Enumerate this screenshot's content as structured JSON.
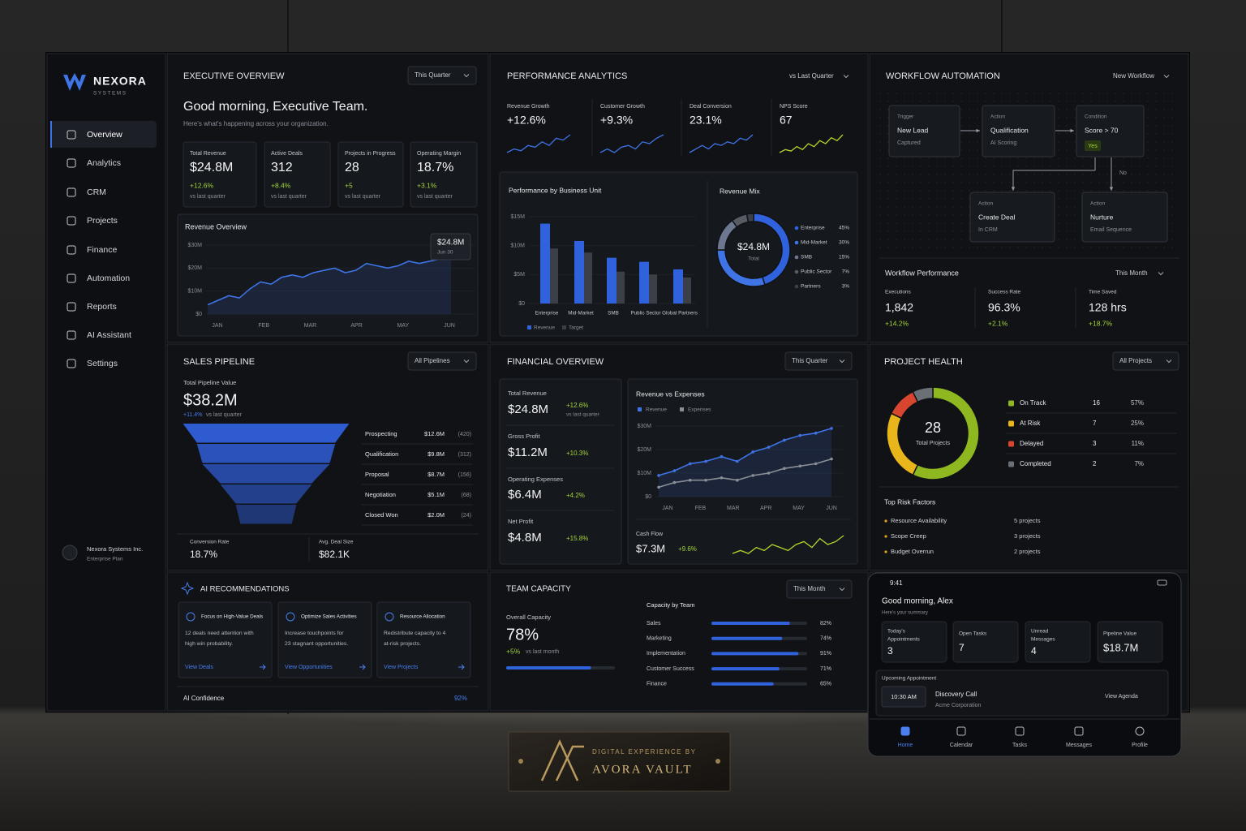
{
  "brand": {
    "name": "NEXORA",
    "tagline": "SYSTEMS"
  },
  "nav": [
    "Overview",
    "Analytics",
    "CRM",
    "Projects",
    "Finance",
    "Automation",
    "Reports",
    "AI Assistant",
    "Settings"
  ],
  "account": {
    "name": "Nexora Systems Inc.",
    "plan": "Enterprise Plan"
  },
  "executive": {
    "title": "EXECUTIVE OVERVIEW",
    "filter": "This Quarter",
    "greeting": "Good morning, Executive Team.",
    "subtitle": "Here's what's happening across your organization.",
    "kpis": [
      {
        "label": "Total Revenue",
        "value": "$24.8M",
        "change": "+12.6%",
        "note": "vs last quarter"
      },
      {
        "label": "Active Deals",
        "value": "312",
        "change": "+8.4%",
        "note": "vs last quarter"
      },
      {
        "label": "Projects in Progress",
        "value": "28",
        "change": "+5",
        "note": "vs last quarter"
      },
      {
        "label": "Operating Margin",
        "value": "18.7%",
        "change": "+3.1%",
        "note": "vs last quarter"
      }
    ],
    "revenue_chart": {
      "type": "line",
      "title": "Revenue Overview",
      "categories": [
        "JAN",
        "FEB",
        "MAR",
        "APR",
        "MAY",
        "JUN"
      ],
      "values": [
        4,
        6,
        8,
        7,
        11,
        14,
        13,
        16,
        17,
        16,
        18,
        19,
        20,
        18,
        19,
        22,
        21,
        20,
        21,
        23,
        22,
        23,
        24,
        24.8
      ],
      "color": "#3f74e6",
      "ylim": [
        0,
        30
      ],
      "yticks": [
        {
          "value": 0,
          "label": "$0"
        },
        {
          "value": 10,
          "label": "$10M"
        },
        {
          "value": 20,
          "label": "$20M"
        },
        {
          "value": 30,
          "label": "$30M"
        }
      ],
      "tooltip": {
        "value": "$24.8M",
        "date": "Jun 30"
      }
    }
  },
  "performance": {
    "title": "PERFORMANCE ANALYTICS",
    "filter": "vs Last Quarter",
    "kpis": [
      {
        "label": "Revenue Growth",
        "value": "+12.6%",
        "color": "#3f74e6",
        "trend": [
          3,
          4,
          3.5,
          5,
          4.5,
          6,
          5,
          7,
          6.5,
          8
        ]
      },
      {
        "label": "Customer Growth",
        "value": "+9.3%",
        "color": "#3f74e6",
        "trend": [
          3,
          4,
          3,
          4.5,
          5,
          4,
          6,
          5.5,
          7,
          8
        ]
      },
      {
        "label": "Deal Conversion",
        "value": "23.1%",
        "color": "#3f74e6",
        "trend": [
          3,
          4,
          5,
          4,
          5.5,
          5,
          6,
          5.5,
          7,
          6.5,
          8
        ]
      },
      {
        "label": "NPS Score",
        "value": "67",
        "color": "#b6d52a",
        "trend": [
          2,
          3,
          2.5,
          4,
          3,
          5,
          4,
          6,
          5,
          7,
          6,
          8
        ]
      }
    ],
    "bu_chart": {
      "type": "bar",
      "title": "Performance by Business Unit",
      "categories": [
        "Enterprise",
        "Mid-Market",
        "SMB",
        "Public Sector",
        "Global Partners"
      ],
      "series": [
        {
          "name": "Revenue",
          "color": "#2f62dc",
          "values": [
            13.8,
            10.8,
            7.9,
            7.2,
            5.9
          ]
        },
        {
          "name": "Target",
          "color": "#3b3f47",
          "values": [
            9.5,
            8.8,
            5.5,
            5.0,
            4.5
          ]
        }
      ],
      "ylim": [
        0,
        15
      ],
      "yticks": [
        {
          "value": 0,
          "label": "$0"
        },
        {
          "value": 5,
          "label": "$5M"
        },
        {
          "value": 10,
          "label": "$10M"
        },
        {
          "value": 15,
          "label": "$15M"
        }
      ]
    },
    "mix": {
      "type": "pie",
      "title": "Revenue Mix",
      "center_value": "$24.8M",
      "center_label": "Total",
      "categories": [
        "Enterprise",
        "Mid-Market",
        "SMB",
        "Public Sector",
        "Partners"
      ],
      "values": [
        45,
        30,
        15,
        7,
        3
      ],
      "value_labels": [
        "45%",
        "30%",
        "15%",
        "7%",
        "3%"
      ],
      "colors": [
        "#2f62dc",
        "#3f74e6",
        "#6d7890",
        "#565b64",
        "#3c4048"
      ]
    }
  },
  "workflow": {
    "title": "WORKFLOW AUTOMATION",
    "filter": "New Workflow",
    "nodes": [
      {
        "kind": "Trigger",
        "title": "New Lead",
        "detail": "Captured"
      },
      {
        "kind": "Action",
        "title": "Qualification",
        "detail": "AI Scoring"
      },
      {
        "kind": "Condition",
        "title": "Score > 70",
        "detail": "Yes"
      },
      {
        "kind": "Action",
        "title": "Create Deal",
        "detail": "In CRM"
      },
      {
        "kind": "Action",
        "title": "Nurture",
        "detail": "Email Sequence"
      }
    ],
    "branch_label": "No",
    "performance": {
      "title": "Workflow Performance",
      "filter": "This Month",
      "stats": [
        {
          "label": "Executions",
          "value": "1,842",
          "change": "+14.2%"
        },
        {
          "label": "Success Rate",
          "value": "96.3%",
          "change": "+2.1%"
        },
        {
          "label": "Time Saved",
          "value": "128 hrs",
          "change": "+18.7%"
        }
      ]
    }
  },
  "pipeline": {
    "title": "SALES PIPELINE",
    "filter": "All Pipelines",
    "total_label": "Total Pipeline Value",
    "total": "$38.2M",
    "change": "+11.4%",
    "change_note": "vs last quarter",
    "funnel": {
      "type": "funnel",
      "color": "#2f5bd0",
      "categories": [
        "Prospecting",
        "Qualification",
        "Proposal",
        "Negotiation",
        "Closed Won"
      ],
      "values": [
        12.6,
        9.8,
        8.7,
        5.1,
        2.0
      ],
      "value_labels": [
        "$12.6M",
        "$9.8M",
        "$8.7M",
        "$5.1M",
        "$2.0M"
      ],
      "deal_counts": [
        "(420)",
        "(312)",
        "(156)",
        "(68)",
        "(24)"
      ]
    },
    "footer": [
      {
        "label": "Conversion Rate",
        "value": "18.7%"
      },
      {
        "label": "Avg. Deal Size",
        "value": "$82.1K"
      }
    ]
  },
  "financial": {
    "title": "FINANCIAL OVERVIEW",
    "filter": "This Quarter",
    "metrics": [
      {
        "label": "Total Revenue",
        "value": "$24.8M",
        "change": "+12.6%",
        "note": "vs last quarter"
      },
      {
        "label": "Gross Profit",
        "value": "$11.2M",
        "change": "+10.3%"
      },
      {
        "label": "Operating Expenses",
        "value": "$6.4M",
        "change": "+4.2%"
      },
      {
        "label": "Net Profit",
        "value": "$4.8M",
        "change": "+15.8%"
      }
    ],
    "chart": {
      "type": "line",
      "title": "Revenue vs Expenses",
      "categories": [
        "JAN",
        "FEB",
        "MAR",
        "APR",
        "MAY",
        "JUN"
      ],
      "series": [
        {
          "name": "Revenue",
          "color": "#3f74e6",
          "values": [
            9,
            11,
            14,
            15,
            17,
            15,
            19,
            21,
            24,
            26,
            27,
            29
          ]
        },
        {
          "name": "Expenses",
          "color": "#8a8e96",
          "values": [
            4,
            6,
            7,
            7,
            8,
            7,
            9,
            10,
            12,
            13,
            14,
            16
          ]
        }
      ],
      "ylim": [
        0,
        30
      ],
      "yticks": [
        {
          "value": 0,
          "label": "$0"
        },
        {
          "value": 10,
          "label": "$10M"
        },
        {
          "value": 20,
          "label": "$20M"
        },
        {
          "value": 30,
          "label": "$30M"
        }
      ]
    },
    "cash_flow": {
      "label": "Cash Flow",
      "value": "$7.3M",
      "change": "+9.6%",
      "color": "#b6d52a",
      "trend": [
        3,
        4,
        3,
        5,
        4,
        6,
        5,
        4,
        6,
        7,
        5,
        8,
        6,
        7,
        9
      ]
    }
  },
  "project_health": {
    "title": "PROJECT HEALTH",
    "filter": "All Projects",
    "chart": {
      "type": "pie",
      "center_value": "28",
      "center_label": "Total Projects",
      "categories": [
        "On Track",
        "At Risk",
        "Delayed",
        "Completed"
      ],
      "values": [
        16,
        7,
        3,
        2
      ],
      "share_labels": [
        "57%",
        "25%",
        "11%",
        "7%"
      ],
      "colors": [
        "#8fb820",
        "#e8b51a",
        "#d9452f",
        "#6b6f76"
      ]
    },
    "risks": {
      "title": "Top Risk Factors",
      "items": [
        {
          "name": "Resource Availability",
          "count": "5 projects"
        },
        {
          "name": "Scope Creep",
          "count": "3 projects"
        },
        {
          "name": "Budget Overrun",
          "count": "2 projects"
        }
      ]
    }
  },
  "ai": {
    "title": "AI RECOMMENDATIONS",
    "cards": [
      {
        "title": "Focus on High-Value Deals",
        "body": [
          "12 deals need attention with",
          "high win probability."
        ],
        "link": "View Deals"
      },
      {
        "title": "Optimize Sales Activities",
        "body": [
          "Increase touchpoints for",
          "23 stagnant opportunities."
        ],
        "link": "View Opportunities"
      },
      {
        "title": "Resource Allocation",
        "body": [
          "Redistribute capacity to 4",
          "at-risk projects."
        ],
        "link": "View Projects"
      }
    ],
    "confidence_label": "AI Confidence",
    "confidence": "92%"
  },
  "team": {
    "title": "TEAM CAPACITY",
    "filter": "This Month",
    "overall_label": "Overall Capacity",
    "overall": 78,
    "overall_text": "78%",
    "change": "+5%",
    "change_note": "vs last month",
    "chart": {
      "type": "bar",
      "title": "Capacity by Team",
      "color": "#2f62dc",
      "categories": [
        "Sales",
        "Marketing",
        "Implementation",
        "Customer Success",
        "Finance"
      ],
      "values": [
        82,
        74,
        91,
        71,
        65
      ],
      "value_labels": [
        "82%",
        "74%",
        "91%",
        "71%",
        "65%"
      ],
      "xlim": [
        0,
        100
      ]
    }
  },
  "mobile": {
    "time": "9:41",
    "greeting": "Good morning, Alex",
    "subtitle": "Here's your summary",
    "tiles": [
      {
        "label": [
          "Today's",
          "Appointments"
        ],
        "value": "3"
      },
      {
        "label": [
          "Open Tasks"
        ],
        "value": "7"
      },
      {
        "label": [
          "Unread",
          "Messages"
        ],
        "value": "4"
      },
      {
        "label": [
          "Pipeline Value"
        ],
        "value": "$18.7M"
      }
    ],
    "appointment": {
      "title": "Upcoming Appointment",
      "time": "10:30 AM",
      "name": "Discovery Call",
      "company": "Acme Corporation",
      "link": "View Agenda"
    },
    "tabs": [
      "Home",
      "Calendar",
      "Tasks",
      "Messages",
      "Profile"
    ]
  },
  "plaque": {
    "line1": "DIGITAL EXPERIENCE BY",
    "line2": "AVORA VAULT"
  }
}
